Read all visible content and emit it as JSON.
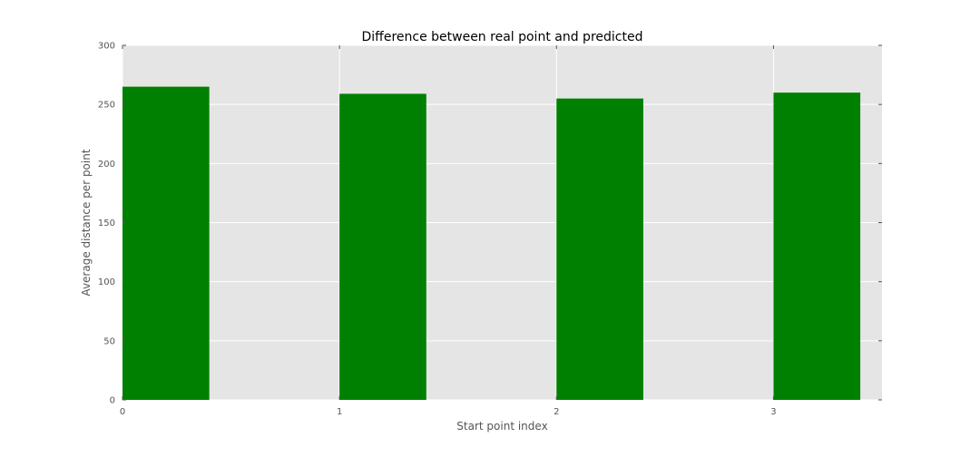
{
  "chart_data": {
    "type": "bar",
    "title": "Difference between real point and predicted",
    "xlabel": "Start point index",
    "ylabel": "Average distance per point",
    "x": [
      0,
      1,
      2,
      3
    ],
    "values": [
      265,
      259,
      255,
      260
    ],
    "bar_width": 0.4,
    "xlim": [
      0,
      3.5
    ],
    "ylim": [
      0,
      300
    ],
    "xticks": [
      0,
      1,
      2,
      3
    ],
    "yticks": [
      0,
      50,
      100,
      150,
      200,
      250,
      300
    ],
    "grid": true,
    "bar_color": "#008000",
    "background_color": "#e5e5e5",
    "grid_color": "#ffffff"
  }
}
